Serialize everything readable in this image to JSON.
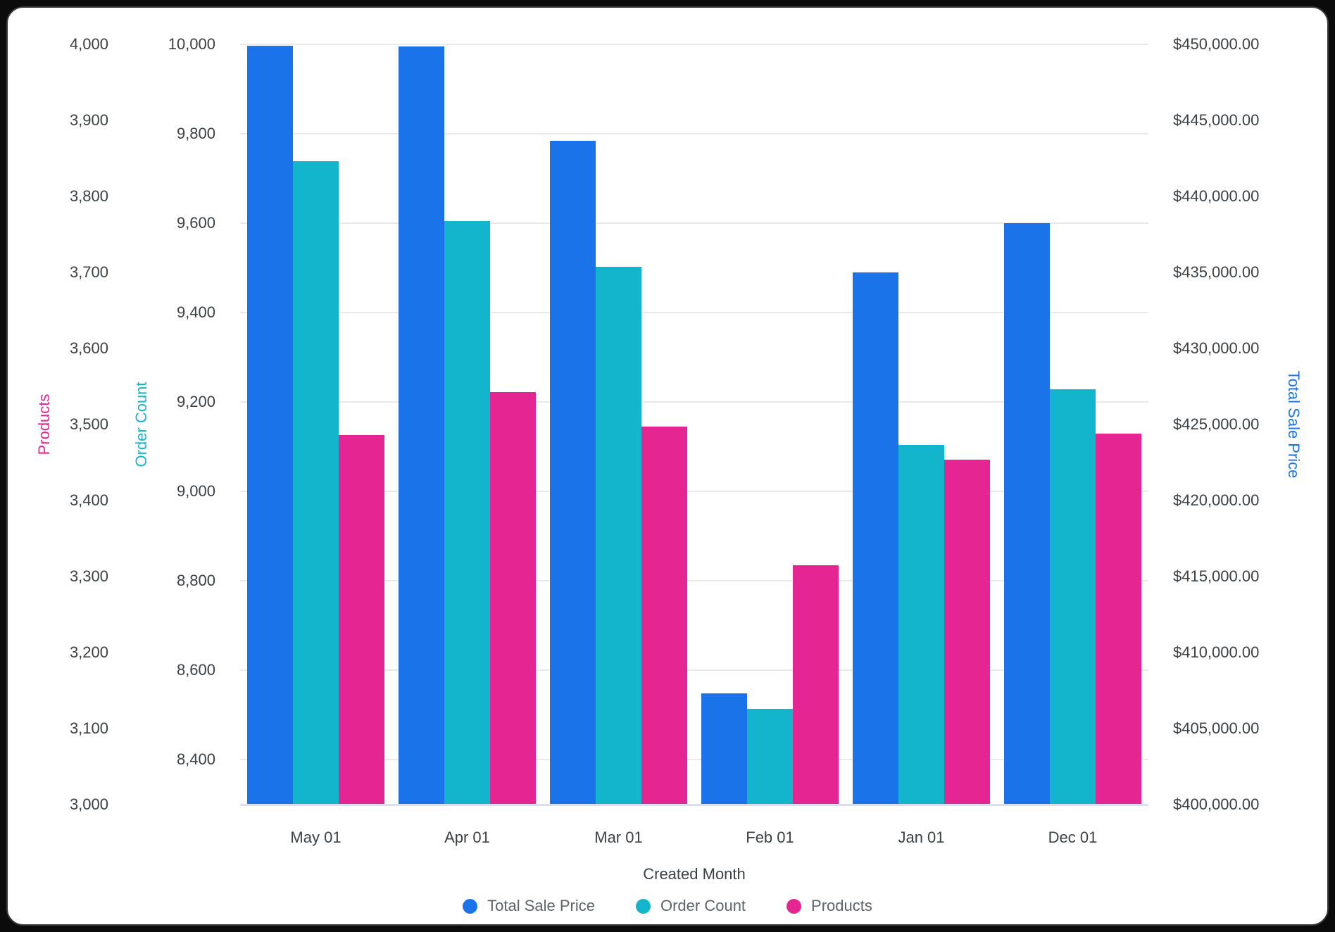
{
  "chart_data": {
    "type": "bar",
    "title": "",
    "xlabel": "Created Month",
    "categories": [
      "May 01",
      "Apr 01",
      "Mar 01",
      "Feb 01",
      "Jan 01",
      "Dec 01"
    ],
    "series": [
      {
        "name": "Total Sale Price",
        "axis": "sale",
        "color": "#1a73e8",
        "values": [
          449900,
          449880,
          443650,
          407315,
          435000,
          438240
        ]
      },
      {
        "name": "Order Count",
        "axis": "order",
        "color": "#12b5cb",
        "values": [
          9738,
          9605,
          9502,
          8514,
          9104,
          9229
        ]
      },
      {
        "name": "Products",
        "axis": "products",
        "color": "#e52592",
        "values": [
          3486,
          3543,
          3497,
          3315,
          3454,
          3488
        ]
      }
    ],
    "axes": {
      "products": {
        "title": "Products",
        "color": "#e52592",
        "min": 3000,
        "max": 4000,
        "ticks": [
          {
            "v": 4000,
            "label": "4,000"
          },
          {
            "v": 3900,
            "label": "3,900"
          },
          {
            "v": 3800,
            "label": "3,800"
          },
          {
            "v": 3700,
            "label": "3,700"
          },
          {
            "v": 3600,
            "label": "3,600"
          },
          {
            "v": 3500,
            "label": "3,500"
          },
          {
            "v": 3400,
            "label": "3,400"
          },
          {
            "v": 3300,
            "label": "3,300"
          },
          {
            "v": 3200,
            "label": "3,200"
          },
          {
            "v": 3100,
            "label": "3,100"
          },
          {
            "v": 3000,
            "label": "3,000"
          }
        ]
      },
      "order": {
        "title": "Order Count",
        "color": "#12b5cb",
        "min": 8300,
        "max": 10000,
        "gridlines": true,
        "ticks": [
          {
            "v": 10000,
            "label": "10,000"
          },
          {
            "v": 9800,
            "label": "9,800"
          },
          {
            "v": 9600,
            "label": "9,600"
          },
          {
            "v": 9400,
            "label": "9,400"
          },
          {
            "v": 9200,
            "label": "9,200"
          },
          {
            "v": 9000,
            "label": "9,000"
          },
          {
            "v": 8800,
            "label": "8,800"
          },
          {
            "v": 8600,
            "label": "8,600"
          },
          {
            "v": 8400,
            "label": "8,400"
          }
        ]
      },
      "sale": {
        "title": "Total Sale Price",
        "color": "#1a73e8",
        "min": 400000,
        "max": 450000,
        "ticks": [
          {
            "v": 450000,
            "label": "$450,000.00"
          },
          {
            "v": 445000,
            "label": "$445,000.00"
          },
          {
            "v": 440000,
            "label": "$440,000.00"
          },
          {
            "v": 435000,
            "label": "$435,000.00"
          },
          {
            "v": 430000,
            "label": "$430,000.00"
          },
          {
            "v": 425000,
            "label": "$425,000.00"
          },
          {
            "v": 420000,
            "label": "$420,000.00"
          },
          {
            "v": 415000,
            "label": "$415,000.00"
          },
          {
            "v": 410000,
            "label": "$410,000.00"
          },
          {
            "v": 405000,
            "label": "$405,000.00"
          },
          {
            "v": 400000,
            "label": "$400,000.00"
          }
        ]
      }
    },
    "legend": {
      "position": "bottom",
      "items": [
        "Total Sale Price",
        "Order Count",
        "Products"
      ]
    }
  }
}
